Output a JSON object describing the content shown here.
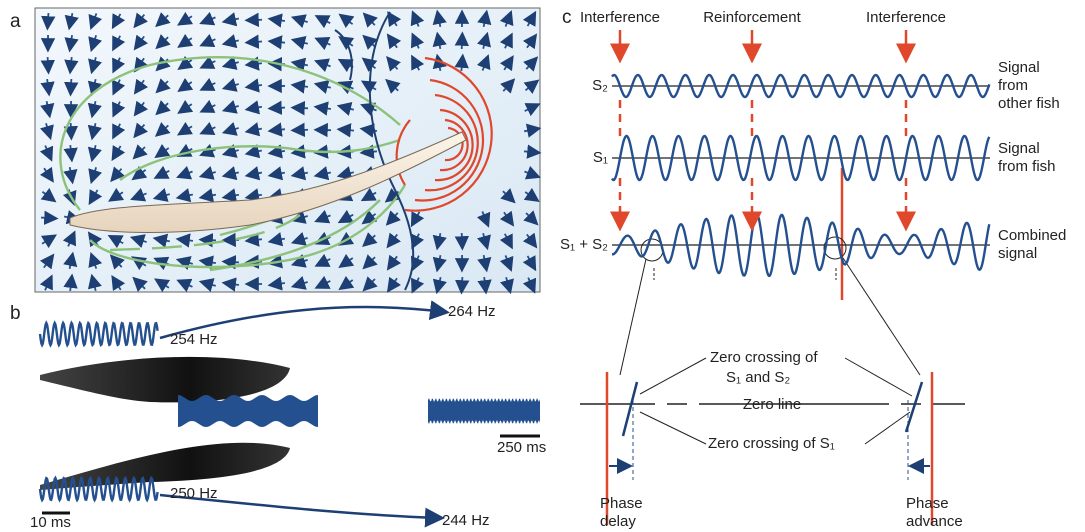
{
  "panels": {
    "a": "a",
    "b": "b",
    "c": "c"
  },
  "b": {
    "top_freq": "254 Hz",
    "top_shift": "264 Hz",
    "bottom_freq": "250 Hz",
    "bottom_shift": "244 Hz",
    "scale_short": "10 ms",
    "scale_long": "250 ms"
  },
  "c": {
    "markers": [
      "Interference",
      "Reinforcement",
      "Interference"
    ],
    "signals": [
      {
        "name": "S₂",
        "label": [
          "Signal",
          "from",
          "other fish"
        ]
      },
      {
        "name": "S₁",
        "label": [
          "Signal",
          "from fish"
        ]
      },
      {
        "name": "S₁ + S₂",
        "label": [
          "Combined",
          "signal"
        ]
      }
    ],
    "zero_crossing_both": [
      "Zero crossing of",
      "S₁ and S₂"
    ],
    "zero_line": "Zero line",
    "zero_crossing_s1": "Zero crossing of S₁",
    "phase_delay": [
      "Phase",
      "delay"
    ],
    "phase_advance": [
      "Phase",
      "advance"
    ]
  }
}
